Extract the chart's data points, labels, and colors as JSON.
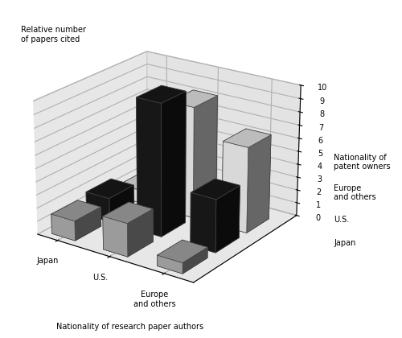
{
  "ylabel": "Relative number\nof papers cited",
  "xlabel": "Nationality of research paper authors",
  "x_labels": [
    "Japan",
    "U.S.",
    "Europe\nand others"
  ],
  "patent_labels": [
    "Japan",
    "U.S.",
    "Europe\nand others"
  ],
  "patent_header": "Nationality of\npatent owners",
  "values": [
    [
      1.5,
      1.8,
      1.0
    ],
    [
      2.5,
      10.0,
      8.5
    ],
    [
      0.8,
      4.0,
      6.5
    ]
  ],
  "bar_colors_by_patent": [
    "#b0b0b0",
    "#1a1a1a",
    "#f5f5f5"
  ],
  "bar_edge_color": "#444444",
  "ylim": [
    0,
    10
  ],
  "yticks": [
    0,
    1,
    2,
    3,
    4,
    5,
    6,
    7,
    8,
    9,
    10
  ],
  "wall_color_back": "#d0d0d0",
  "wall_color_side": "#c8c8c8",
  "wall_color_bottom": "#d8d8d8",
  "elev": 22,
  "azim": -55
}
